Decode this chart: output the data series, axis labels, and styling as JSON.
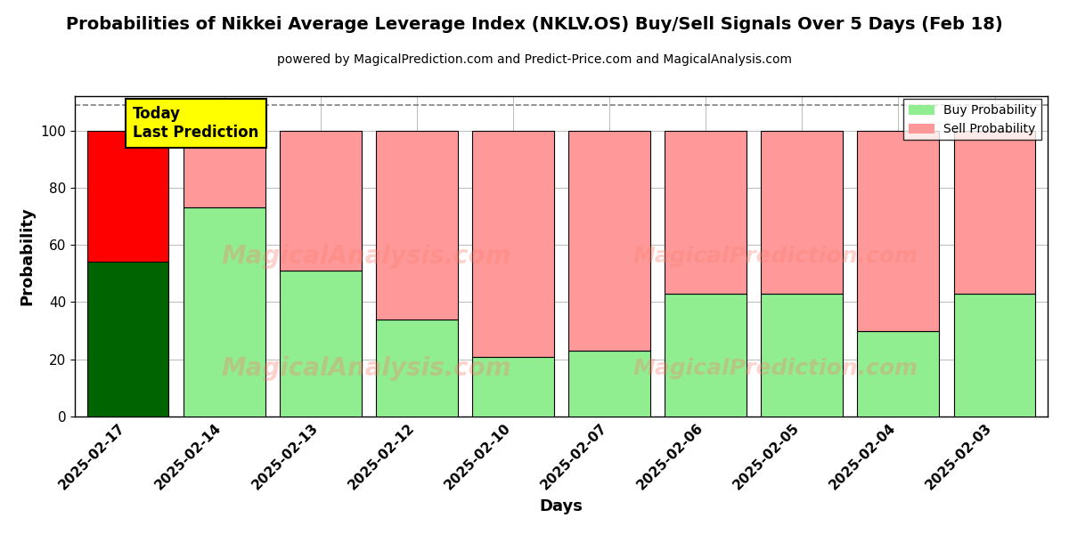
{
  "title": "Probabilities of Nikkei Average Leverage Index (NKLV.OS) Buy/Sell Signals Over 5 Days (Feb 18)",
  "subtitle": "powered by MagicalPrediction.com and Predict-Price.com and MagicalAnalysis.com",
  "xlabel": "Days",
  "ylabel": "Probability",
  "days": [
    "2025-02-17",
    "2025-02-14",
    "2025-02-13",
    "2025-02-12",
    "2025-02-10",
    "2025-02-07",
    "2025-02-06",
    "2025-02-05",
    "2025-02-04",
    "2025-02-03"
  ],
  "buy_probs": [
    54,
    73,
    51,
    34,
    21,
    23,
    43,
    43,
    30,
    43
  ],
  "sell_probs": [
    46,
    27,
    49,
    66,
    79,
    77,
    57,
    57,
    70,
    57
  ],
  "buy_colors": [
    "#006400",
    "#90EE90",
    "#90EE90",
    "#90EE90",
    "#90EE90",
    "#90EE90",
    "#90EE90",
    "#90EE90",
    "#90EE90",
    "#90EE90"
  ],
  "sell_colors": [
    "#FF0000",
    "#FF9999",
    "#FF9999",
    "#FF9999",
    "#FF9999",
    "#FF9999",
    "#FF9999",
    "#FF9999",
    "#FF9999",
    "#FF9999"
  ],
  "today_label": "Today\nLast Prediction",
  "legend_buy": "Buy Probability",
  "legend_sell": "Sell Probability",
  "ylim": [
    0,
    112
  ],
  "yticks": [
    0,
    20,
    40,
    60,
    80,
    100
  ],
  "dashed_line_y": 109,
  "watermark1_text": "MagicalAnalysis.com",
  "watermark2_text": "MagicalPrediction.com",
  "background_color": "#ffffff",
  "grid_color": "#bbbbbb"
}
